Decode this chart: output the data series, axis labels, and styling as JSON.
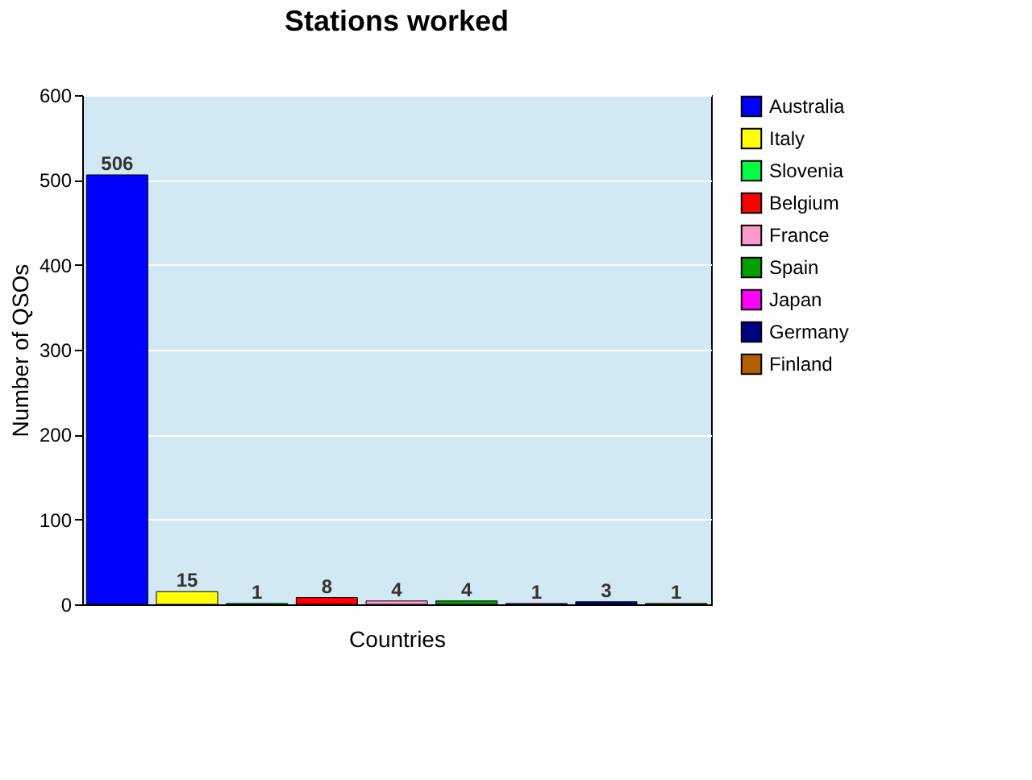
{
  "chart_data": {
    "type": "bar",
    "title": "Stations worked",
    "xlabel": "Countries",
    "ylabel": "Number of QSOs",
    "categories": [
      null,
      null,
      null,
      null,
      null,
      null,
      null,
      null,
      null
    ],
    "series": [
      {
        "name": "Australia",
        "color": "#0000ff",
        "values": [
          506,
          null,
          null,
          null,
          null,
          null,
          null,
          null,
          null
        ]
      },
      {
        "name": "Italy",
        "color": "#ffff00",
        "values": [
          null,
          15,
          null,
          null,
          null,
          null,
          null,
          null,
          null
        ]
      },
      {
        "name": "Slovenia",
        "color": "#00ff40",
        "values": [
          null,
          null,
          1,
          null,
          null,
          null,
          null,
          null,
          null
        ]
      },
      {
        "name": "Belgium",
        "color": "#ff0000",
        "values": [
          null,
          null,
          null,
          8,
          null,
          null,
          null,
          null,
          null
        ]
      },
      {
        "name": "France",
        "color": "#ff99cc",
        "values": [
          null,
          null,
          null,
          null,
          4,
          null,
          null,
          null,
          null
        ]
      },
      {
        "name": "Spain",
        "color": "#00a000",
        "values": [
          null,
          null,
          null,
          null,
          null,
          4,
          null,
          null,
          null
        ]
      },
      {
        "name": "Japan",
        "color": "#ff00ff",
        "values": [
          null,
          null,
          null,
          null,
          null,
          null,
          1,
          null,
          null
        ]
      },
      {
        "name": "Germany",
        "color": "#000080",
        "values": [
          null,
          null,
          null,
          null,
          null,
          null,
          null,
          3,
          null
        ]
      },
      {
        "name": "Finland",
        "color": "#b35f00",
        "values": [
          null,
          null,
          null,
          null,
          null,
          null,
          null,
          null,
          1
        ]
      }
    ],
    "ylim": [
      0,
      600
    ],
    "yticks": [
      0,
      100,
      200,
      300,
      400,
      500,
      600
    ],
    "grid": "y",
    "legend": "right",
    "tick_labels": "y",
    "data_labels": true
  }
}
